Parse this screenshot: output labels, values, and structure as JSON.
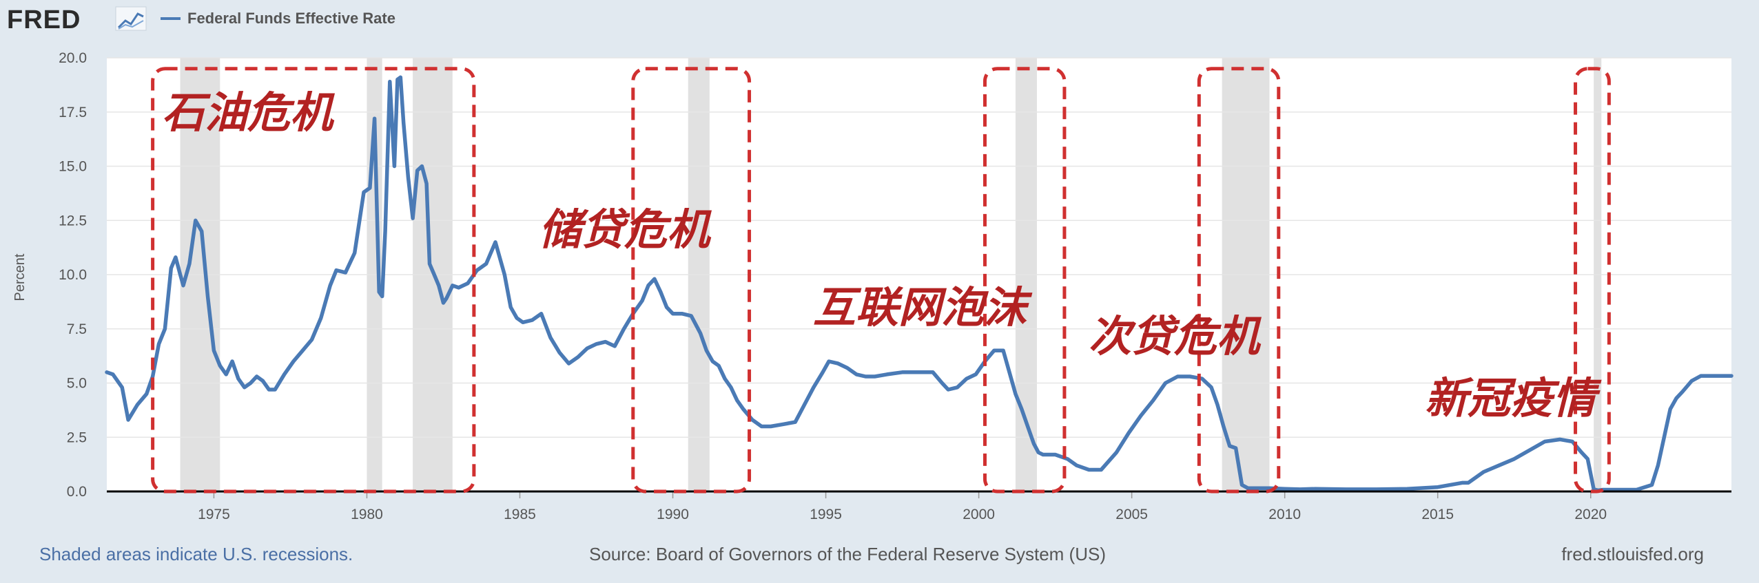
{
  "header": {
    "logo_text": "FRED",
    "legend_label": "Federal Funds Effective Rate"
  },
  "footer": {
    "recession_note": "Shaded areas indicate U.S. recessions.",
    "source": "Source: Board of Governors of the Federal Reserve System (US)",
    "site": "fred.stlouisfed.org"
  },
  "colors": {
    "line": "#4a7ab5",
    "annotation": "#b22222",
    "box": "#d03030",
    "recession": "#e1e1e1",
    "background": "#e1e9f0",
    "plot": "#ffffff",
    "footer_blue": "#4a6fa5",
    "footer_gray": "#555555"
  },
  "icons": {
    "logo_graph": "fred-graph-icon"
  },
  "chart_data": {
    "type": "line",
    "title": "",
    "xlabel": "",
    "ylabel": "Percent",
    "xlim": [
      1971.5,
      2024.6
    ],
    "ylim": [
      0,
      20
    ],
    "x_ticks": [
      1975,
      1980,
      1985,
      1990,
      1995,
      2000,
      2005,
      2010,
      2015,
      2020
    ],
    "y_ticks": [
      0.0,
      2.5,
      5.0,
      7.5,
      10.0,
      12.5,
      15.0,
      17.5,
      20.0
    ],
    "y_tick_labels": [
      "0.0",
      "2.5",
      "5.0",
      "7.5",
      "10.0",
      "12.5",
      "15.0",
      "17.5",
      "20.0"
    ],
    "grid": true,
    "legend": "top-left",
    "recessions": [
      [
        1973.9,
        1975.2
      ],
      [
        1980.0,
        1980.5
      ],
      [
        1981.5,
        1982.8
      ],
      [
        1990.5,
        1991.2
      ],
      [
        2001.2,
        2001.9
      ],
      [
        2007.95,
        2009.5
      ],
      [
        2020.1,
        2020.35
      ]
    ],
    "series": [
      {
        "name": "Federal Funds Effective Rate",
        "x": [
          1971.5,
          1971.7,
          1972.0,
          1972.2,
          1972.5,
          1972.8,
          1973.0,
          1973.2,
          1973.4,
          1973.6,
          1973.75,
          1973.9,
          1974.0,
          1974.2,
          1974.4,
          1974.6,
          1974.8,
          1975.0,
          1975.2,
          1975.4,
          1975.6,
          1975.8,
          1976.0,
          1976.2,
          1976.4,
          1976.6,
          1976.8,
          1977.0,
          1977.3,
          1977.6,
          1977.9,
          1978.2,
          1978.5,
          1978.8,
          1979.0,
          1979.3,
          1979.6,
          1979.9,
          1980.1,
          1980.25,
          1980.4,
          1980.5,
          1980.6,
          1980.75,
          1980.9,
          1981.0,
          1981.1,
          1981.2,
          1981.35,
          1981.5,
          1981.65,
          1981.8,
          1981.95,
          1982.05,
          1982.2,
          1982.35,
          1982.5,
          1982.6,
          1982.7,
          1982.8,
          1983.0,
          1983.3,
          1983.6,
          1983.9,
          1984.2,
          1984.5,
          1984.7,
          1984.9,
          1985.1,
          1985.4,
          1985.7,
          1986.0,
          1986.3,
          1986.6,
          1986.9,
          1987.2,
          1987.5,
          1987.8,
          1988.1,
          1988.4,
          1988.7,
          1989.0,
          1989.2,
          1989.4,
          1989.6,
          1989.8,
          1990.0,
          1990.3,
          1990.6,
          1990.9,
          1991.1,
          1991.3,
          1991.5,
          1991.7,
          1991.9,
          1992.1,
          1992.3,
          1992.6,
          1992.9,
          1993.2,
          1993.6,
          1994.0,
          1994.3,
          1994.6,
          1994.9,
          1995.1,
          1995.4,
          1995.7,
          1996.0,
          1996.3,
          1996.6,
          1997.0,
          1997.5,
          1998.0,
          1998.5,
          1998.8,
          1999.0,
          1999.3,
          1999.6,
          1999.9,
          2000.2,
          2000.5,
          2000.8,
          2001.0,
          2001.2,
          2001.4,
          2001.6,
          2001.8,
          2001.95,
          2002.1,
          2002.5,
          2002.9,
          2003.2,
          2003.6,
          2004.0,
          2004.5,
          2004.9,
          2005.3,
          2005.7,
          2006.1,
          2006.5,
          2006.9,
          2007.3,
          2007.6,
          2007.8,
          2008.0,
          2008.2,
          2008.4,
          2008.6,
          2008.8,
          2009.0,
          2009.5,
          2010.0,
          2010.5,
          2011.0,
          2012.0,
          2013.0,
          2014.0,
          2015.0,
          2015.8,
          2016.0,
          2016.5,
          2017.0,
          2017.5,
          2018.0,
          2018.5,
          2019.0,
          2019.4,
          2019.7,
          2019.9,
          2020.1,
          2020.25,
          2020.4,
          2021.0,
          2021.5,
          2022.0,
          2022.2,
          2022.4,
          2022.6,
          2022.8,
          2023.0,
          2023.3,
          2023.6,
          2024.0,
          2024.6
        ],
        "values": [
          5.5,
          5.4,
          4.8,
          3.3,
          4.0,
          4.5,
          5.3,
          6.8,
          7.5,
          10.3,
          10.8,
          10.0,
          9.5,
          10.5,
          12.5,
          12.0,
          9.0,
          6.5,
          5.8,
          5.4,
          6.0,
          5.2,
          4.8,
          5.0,
          5.3,
          5.1,
          4.7,
          4.7,
          5.4,
          6.0,
          6.5,
          7.0,
          8.0,
          9.5,
          10.2,
          10.1,
          11.0,
          13.8,
          14.0,
          17.2,
          9.2,
          9.0,
          12.0,
          18.9,
          15.0,
          19.0,
          19.1,
          17.0,
          14.5,
          12.6,
          14.8,
          15.0,
          14.2,
          10.5,
          10.0,
          9.5,
          8.7,
          8.9,
          9.2,
          9.5,
          9.4,
          9.6,
          10.2,
          10.5,
          11.5,
          10.0,
          8.5,
          8.0,
          7.8,
          7.9,
          8.2,
          7.1,
          6.4,
          5.9,
          6.2,
          6.6,
          6.8,
          6.9,
          6.7,
          7.5,
          8.2,
          8.8,
          9.5,
          9.8,
          9.2,
          8.5,
          8.2,
          8.2,
          8.1,
          7.3,
          6.5,
          6.0,
          5.8,
          5.2,
          4.8,
          4.2,
          3.8,
          3.3,
          3.0,
          3.0,
          3.1,
          3.2,
          4.0,
          4.8,
          5.5,
          6.0,
          5.9,
          5.7,
          5.4,
          5.3,
          5.3,
          5.4,
          5.5,
          5.5,
          5.5,
          5.0,
          4.7,
          4.8,
          5.2,
          5.4,
          6.0,
          6.5,
          6.5,
          5.5,
          4.5,
          3.8,
          3.0,
          2.2,
          1.8,
          1.7,
          1.7,
          1.5,
          1.2,
          1.0,
          1.0,
          1.8,
          2.7,
          3.5,
          4.2,
          5.0,
          5.3,
          5.3,
          5.2,
          4.8,
          4.0,
          3.0,
          2.1,
          2.0,
          0.3,
          0.15,
          0.15,
          0.15,
          0.12,
          0.1,
          0.12,
          0.1,
          0.1,
          0.12,
          0.2,
          0.4,
          0.4,
          0.9,
          1.2,
          1.5,
          1.9,
          2.3,
          2.4,
          2.3,
          1.8,
          1.5,
          0.1,
          0.05,
          0.08,
          0.08,
          0.08,
          0.3,
          1.2,
          2.5,
          3.8,
          4.3,
          4.6,
          5.1,
          5.33,
          5.33,
          5.33
        ]
      }
    ],
    "annotations": [
      {
        "text": "石油危机",
        "x_range": [
          1973.0,
          1983.5
        ],
        "y_range": [
          0,
          19.5
        ]
      },
      {
        "text": "储贷危机",
        "x_range": [
          1988.7,
          1992.5
        ],
        "y_range": [
          0,
          19.5
        ]
      },
      {
        "text": "互联网泡沫",
        "x_range": [
          2000.2,
          2002.8
        ],
        "y_range": [
          0,
          19.5
        ]
      },
      {
        "text": "次贷危机",
        "x_range": [
          2007.2,
          2009.8
        ],
        "y_range": [
          0,
          19.5
        ]
      },
      {
        "text": "新冠疫情",
        "x_range": [
          2019.5,
          2020.6
        ],
        "y_range": [
          0,
          19.5
        ]
      }
    ]
  }
}
